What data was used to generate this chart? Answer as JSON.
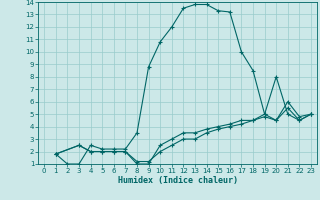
{
  "xlabel": "Humidex (Indice chaleur)",
  "ylabel": "",
  "bg_color": "#cce8e8",
  "line_color": "#006666",
  "grid_color": "#99cccc",
  "xlim": [
    -0.5,
    23.5
  ],
  "ylim": [
    1,
    14
  ],
  "xticks": [
    0,
    1,
    2,
    3,
    4,
    5,
    6,
    7,
    8,
    9,
    10,
    11,
    12,
    13,
    14,
    15,
    16,
    17,
    18,
    19,
    20,
    21,
    22,
    23
  ],
  "yticks": [
    1,
    2,
    3,
    4,
    5,
    6,
    7,
    8,
    9,
    10,
    11,
    12,
    13,
    14
  ],
  "line1_x": [
    1,
    2,
    3,
    4,
    5,
    6,
    7,
    8,
    9,
    10,
    11,
    12,
    13,
    14,
    15,
    16,
    17,
    18,
    19,
    20,
    21,
    22,
    23
  ],
  "line1_y": [
    1.8,
    1.0,
    1.0,
    2.5,
    2.2,
    2.2,
    2.2,
    3.5,
    8.8,
    10.8,
    12.0,
    13.5,
    13.8,
    13.8,
    13.3,
    13.2,
    10.0,
    8.5,
    5.0,
    4.5,
    6.0,
    4.8,
    5.0
  ],
  "line2_x": [
    1,
    3,
    4,
    5,
    6,
    7,
    8,
    9,
    10,
    11,
    12,
    13,
    14,
    15,
    16,
    17,
    18,
    19,
    20,
    21,
    22,
    23
  ],
  "line2_y": [
    1.8,
    2.5,
    2.0,
    2.0,
    2.0,
    2.0,
    1.0,
    1.0,
    2.5,
    3.0,
    3.5,
    3.5,
    3.8,
    4.0,
    4.2,
    4.5,
    4.5,
    4.8,
    4.5,
    5.5,
    4.5,
    5.0
  ],
  "line3_x": [
    1,
    3,
    4,
    5,
    6,
    7,
    8,
    9,
    10,
    11,
    12,
    13,
    14,
    15,
    16,
    17,
    18,
    19,
    20,
    21,
    22,
    23
  ],
  "line3_y": [
    1.8,
    2.5,
    2.0,
    2.0,
    2.0,
    2.0,
    1.2,
    1.2,
    2.0,
    2.5,
    3.0,
    3.0,
    3.5,
    3.8,
    4.0,
    4.2,
    4.5,
    5.0,
    8.0,
    5.0,
    4.5,
    5.0
  ],
  "lw": 0.8,
  "ms": 3.0,
  "tick_fontsize": 5,
  "xlabel_fontsize": 6
}
